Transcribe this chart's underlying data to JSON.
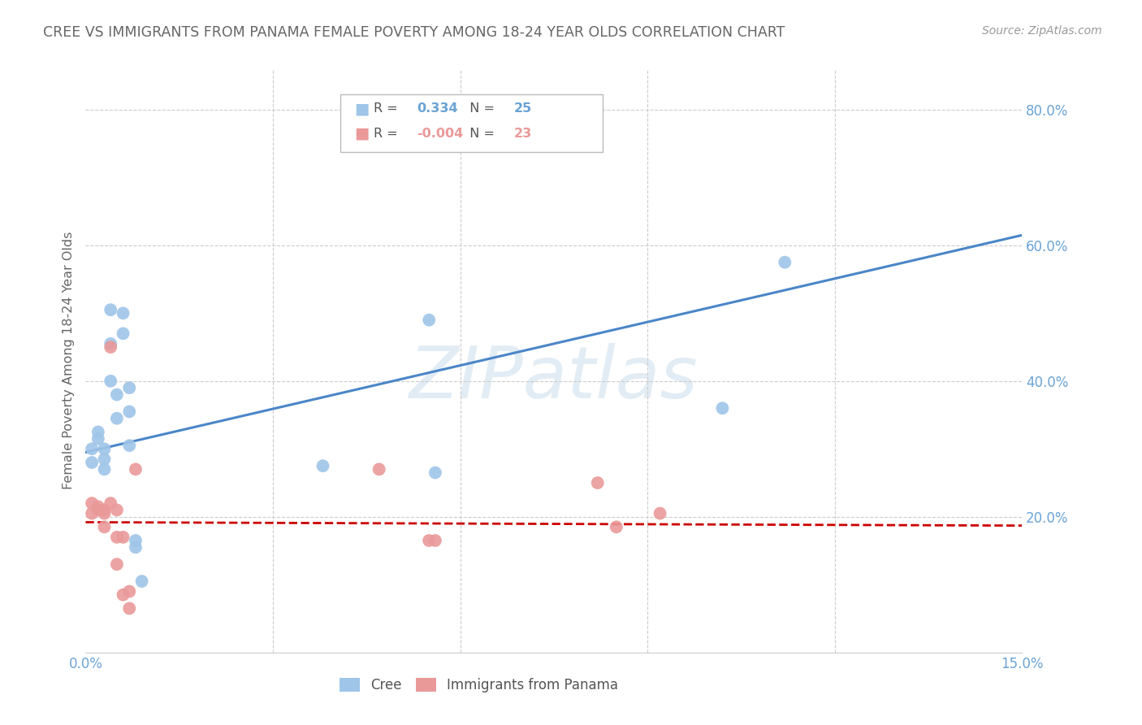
{
  "title": "CREE VS IMMIGRANTS FROM PANAMA FEMALE POVERTY AMONG 18-24 YEAR OLDS CORRELATION CHART",
  "source": "Source: ZipAtlas.com",
  "ylabel": "Female Poverty Among 18-24 Year Olds",
  "ylim": [
    0.0,
    0.86
  ],
  "xlim": [
    0.0,
    0.15
  ],
  "ytick_positions": [
    0.2,
    0.4,
    0.6,
    0.8
  ],
  "ytick_labels": [
    "20.0%",
    "40.0%",
    "60.0%",
    "80.0%"
  ],
  "xtick_positions": [
    0.0,
    0.03,
    0.06,
    0.09,
    0.12,
    0.15
  ],
  "xtick_labels": [
    "0.0%",
    "",
    "",
    "",
    "",
    "15.0%"
  ],
  "cree_R": "0.334",
  "cree_N": "25",
  "panama_R": "-0.004",
  "panama_N": "23",
  "cree_color": "#9fc5e8",
  "panama_color": "#ea9999",
  "cree_line_color": "#4a86c8",
  "panama_line_color": "#cc0000",
  "watermark_color": "#d6e4f0",
  "background_color": "#ffffff",
  "grid_color": "#cccccc",
  "tick_label_color": "#6aa3d5",
  "title_color": "#666666",
  "cree_x": [
    0.001,
    0.001,
    0.002,
    0.002,
    0.003,
    0.003,
    0.003,
    0.004,
    0.004,
    0.004,
    0.005,
    0.005,
    0.006,
    0.006,
    0.007,
    0.007,
    0.007,
    0.008,
    0.008,
    0.009,
    0.038,
    0.055,
    0.056,
    0.102,
    0.112
  ],
  "cree_y": [
    0.28,
    0.3,
    0.315,
    0.325,
    0.27,
    0.285,
    0.3,
    0.4,
    0.455,
    0.505,
    0.38,
    0.345,
    0.5,
    0.47,
    0.39,
    0.355,
    0.305,
    0.155,
    0.165,
    0.105,
    0.275,
    0.49,
    0.265,
    0.36,
    0.575
  ],
  "panama_x": [
    0.001,
    0.001,
    0.002,
    0.002,
    0.003,
    0.003,
    0.003,
    0.004,
    0.004,
    0.005,
    0.005,
    0.005,
    0.006,
    0.006,
    0.007,
    0.007,
    0.008,
    0.047,
    0.055,
    0.056,
    0.082,
    0.085,
    0.092
  ],
  "panama_y": [
    0.22,
    0.205,
    0.21,
    0.215,
    0.205,
    0.21,
    0.185,
    0.45,
    0.22,
    0.21,
    0.17,
    0.13,
    0.17,
    0.085,
    0.065,
    0.09,
    0.27,
    0.27,
    0.165,
    0.165,
    0.25,
    0.185,
    0.205
  ],
  "cree_trend_x": [
    0.0,
    0.15
  ],
  "cree_trend_y": [
    0.295,
    0.615
  ],
  "panama_trend_x": [
    0.0,
    0.15
  ],
  "panama_trend_y": [
    0.192,
    0.187
  ]
}
